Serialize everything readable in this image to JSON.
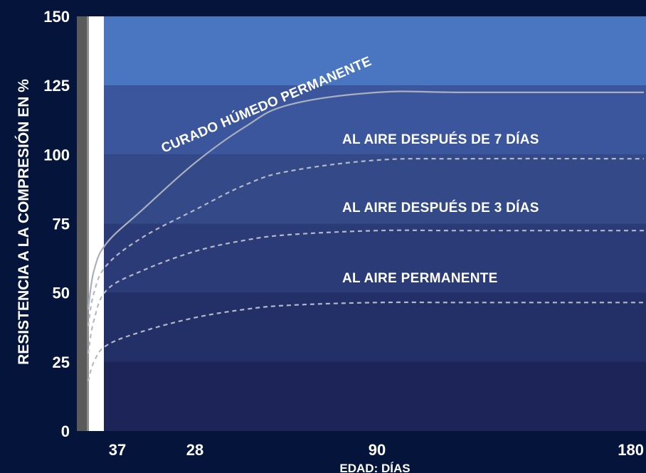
{
  "chart_data": {
    "type": "line",
    "title": "",
    "xlabel": "EDAD: DÍAS",
    "ylabel": "RESISTENCIA A LA COMPRESIÓN EN %",
    "ylim": [
      0,
      150
    ],
    "yticks": [
      "0",
      "25",
      "50",
      "75",
      "100",
      "125",
      "150"
    ],
    "xticks": [
      "37",
      "28",
      "90",
      "180"
    ],
    "grid": false,
    "band_colors": [
      "#1c2458",
      "#233068",
      "#2b3b78",
      "#334988",
      "#3b569c",
      "#4a75c0"
    ],
    "series": [
      {
        "name": "CURADO HÚMEDO PERMANENTE",
        "style": "solid",
        "color": "#a9afbd",
        "x": [
          1,
          3,
          7,
          14,
          28,
          45,
          60,
          90,
          120,
          180
        ],
        "y": [
          44,
          58,
          68,
          80,
          97,
          110,
          118,
          122.5,
          122.5,
          122.5
        ]
      },
      {
        "name": "AL AIRE DESPUÉS DE 7 DÍAS",
        "style": "dashed",
        "color": "#b4b9c6",
        "x": [
          1,
          3,
          7,
          14,
          28,
          45,
          60,
          90,
          120,
          180
        ],
        "y": [
          38,
          50,
          60,
          70,
          80,
          89,
          94,
          98,
          98.5,
          98.5
        ]
      },
      {
        "name": "AL AIRE DESPUÉS DE 3 DÍAS",
        "style": "dashed",
        "color": "#b4b9c6",
        "x": [
          1,
          3,
          7,
          14,
          28,
          45,
          60,
          90,
          120,
          180
        ],
        "y": [
          28,
          40,
          51,
          58,
          65,
          69,
          71,
          72.5,
          72.5,
          72.5
        ]
      },
      {
        "name": "AL AIRE PERMANENTE",
        "style": "dashed",
        "color": "#b4b9c6",
        "x": [
          1,
          3,
          7,
          14,
          28,
          45,
          60,
          90,
          120,
          180
        ],
        "y": [
          18,
          25,
          31,
          36,
          41,
          44,
          45.5,
          46.5,
          46.5,
          46.5
        ]
      }
    ]
  }
}
